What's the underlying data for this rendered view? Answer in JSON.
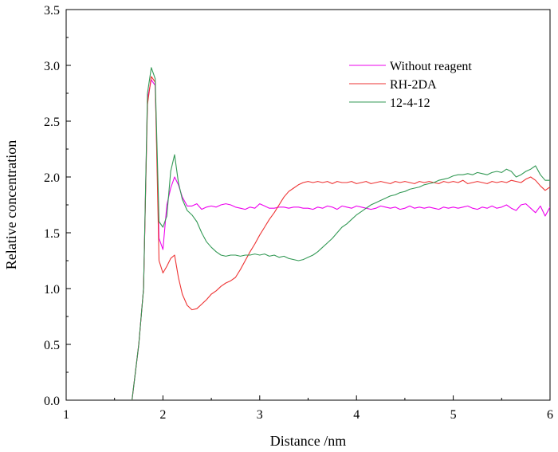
{
  "chart_data": {
    "type": "line",
    "title": "",
    "xlabel": "Distance /nm",
    "ylabel": "Relative concentration",
    "xlim": [
      1,
      6
    ],
    "ylim": [
      0,
      3.5
    ],
    "xticks": [
      "1",
      "2",
      "3",
      "4",
      "5",
      "6"
    ],
    "yticks": [
      "0.0",
      "0.5",
      "1.0",
      "1.5",
      "2.0",
      "2.5",
      "3.0",
      "3.5"
    ],
    "legend_position": "top-right",
    "series": [
      {
        "name": "Without reagent",
        "color": "#ee00ee",
        "points": [
          [
            1.68,
            0.0
          ],
          [
            1.75,
            0.5
          ],
          [
            1.8,
            1.0
          ],
          [
            1.84,
            2.7
          ],
          [
            1.88,
            2.87
          ],
          [
            1.92,
            2.82
          ],
          [
            1.96,
            1.45
          ],
          [
            2.0,
            1.35
          ],
          [
            2.04,
            1.75
          ],
          [
            2.08,
            1.9
          ],
          [
            2.12,
            2.0
          ],
          [
            2.16,
            1.93
          ],
          [
            2.2,
            1.82
          ],
          [
            2.25,
            1.74
          ],
          [
            2.3,
            1.74
          ],
          [
            2.35,
            1.76
          ],
          [
            2.4,
            1.71
          ],
          [
            2.45,
            1.73
          ],
          [
            2.5,
            1.74
          ],
          [
            2.55,
            1.73
          ],
          [
            2.6,
            1.75
          ],
          [
            2.65,
            1.76
          ],
          [
            2.7,
            1.75
          ],
          [
            2.75,
            1.73
          ],
          [
            2.8,
            1.72
          ],
          [
            2.85,
            1.71
          ],
          [
            2.9,
            1.73
          ],
          [
            2.95,
            1.72
          ],
          [
            3.0,
            1.76
          ],
          [
            3.05,
            1.74
          ],
          [
            3.1,
            1.72
          ],
          [
            3.15,
            1.72
          ],
          [
            3.2,
            1.73
          ],
          [
            3.25,
            1.73
          ],
          [
            3.3,
            1.72
          ],
          [
            3.35,
            1.73
          ],
          [
            3.4,
            1.73
          ],
          [
            3.45,
            1.72
          ],
          [
            3.5,
            1.72
          ],
          [
            3.55,
            1.71
          ],
          [
            3.6,
            1.73
          ],
          [
            3.65,
            1.72
          ],
          [
            3.7,
            1.74
          ],
          [
            3.75,
            1.73
          ],
          [
            3.8,
            1.71
          ],
          [
            3.85,
            1.74
          ],
          [
            3.9,
            1.73
          ],
          [
            3.95,
            1.72
          ],
          [
            4.0,
            1.74
          ],
          [
            4.05,
            1.73
          ],
          [
            4.1,
            1.72
          ],
          [
            4.15,
            1.71
          ],
          [
            4.2,
            1.72
          ],
          [
            4.25,
            1.74
          ],
          [
            4.3,
            1.73
          ],
          [
            4.35,
            1.72
          ],
          [
            4.4,
            1.73
          ],
          [
            4.45,
            1.71
          ],
          [
            4.5,
            1.72
          ],
          [
            4.55,
            1.74
          ],
          [
            4.6,
            1.72
          ],
          [
            4.65,
            1.73
          ],
          [
            4.7,
            1.72
          ],
          [
            4.75,
            1.73
          ],
          [
            4.8,
            1.72
          ],
          [
            4.85,
            1.71
          ],
          [
            4.9,
            1.73
          ],
          [
            4.95,
            1.72
          ],
          [
            5.0,
            1.73
          ],
          [
            5.05,
            1.72
          ],
          [
            5.1,
            1.73
          ],
          [
            5.15,
            1.74
          ],
          [
            5.2,
            1.72
          ],
          [
            5.25,
            1.71
          ],
          [
            5.3,
            1.73
          ],
          [
            5.35,
            1.72
          ],
          [
            5.4,
            1.74
          ],
          [
            5.45,
            1.72
          ],
          [
            5.5,
            1.73
          ],
          [
            5.55,
            1.75
          ],
          [
            5.6,
            1.72
          ],
          [
            5.65,
            1.7
          ],
          [
            5.7,
            1.75
          ],
          [
            5.75,
            1.76
          ],
          [
            5.8,
            1.72
          ],
          [
            5.85,
            1.68
          ],
          [
            5.9,
            1.74
          ],
          [
            5.95,
            1.65
          ],
          [
            6.0,
            1.73
          ]
        ]
      },
      {
        "name": "RH-2DA",
        "color": "#ee3333",
        "points": [
          [
            1.68,
            0.0
          ],
          [
            1.75,
            0.5
          ],
          [
            1.8,
            1.0
          ],
          [
            1.84,
            2.65
          ],
          [
            1.88,
            2.9
          ],
          [
            1.92,
            2.85
          ],
          [
            1.96,
            1.25
          ],
          [
            2.0,
            1.14
          ],
          [
            2.04,
            1.2
          ],
          [
            2.08,
            1.27
          ],
          [
            2.12,
            1.3
          ],
          [
            2.16,
            1.1
          ],
          [
            2.2,
            0.95
          ],
          [
            2.25,
            0.85
          ],
          [
            2.3,
            0.81
          ],
          [
            2.35,
            0.82
          ],
          [
            2.4,
            0.86
          ],
          [
            2.45,
            0.9
          ],
          [
            2.5,
            0.95
          ],
          [
            2.55,
            0.98
          ],
          [
            2.6,
            1.02
          ],
          [
            2.65,
            1.05
          ],
          [
            2.7,
            1.07
          ],
          [
            2.75,
            1.1
          ],
          [
            2.8,
            1.17
          ],
          [
            2.85,
            1.25
          ],
          [
            2.9,
            1.33
          ],
          [
            2.95,
            1.4
          ],
          [
            3.0,
            1.48
          ],
          [
            3.05,
            1.55
          ],
          [
            3.1,
            1.62
          ],
          [
            3.15,
            1.68
          ],
          [
            3.2,
            1.75
          ],
          [
            3.25,
            1.82
          ],
          [
            3.3,
            1.87
          ],
          [
            3.35,
            1.9
          ],
          [
            3.4,
            1.93
          ],
          [
            3.45,
            1.95
          ],
          [
            3.5,
            1.96
          ],
          [
            3.55,
            1.95
          ],
          [
            3.6,
            1.96
          ],
          [
            3.65,
            1.95
          ],
          [
            3.7,
            1.96
          ],
          [
            3.75,
            1.94
          ],
          [
            3.8,
            1.96
          ],
          [
            3.85,
            1.95
          ],
          [
            3.9,
            1.95
          ],
          [
            3.95,
            1.96
          ],
          [
            4.0,
            1.94
          ],
          [
            4.05,
            1.95
          ],
          [
            4.1,
            1.96
          ],
          [
            4.15,
            1.94
          ],
          [
            4.2,
            1.95
          ],
          [
            4.25,
            1.96
          ],
          [
            4.3,
            1.95
          ],
          [
            4.35,
            1.94
          ],
          [
            4.4,
            1.96
          ],
          [
            4.45,
            1.95
          ],
          [
            4.5,
            1.96
          ],
          [
            4.55,
            1.95
          ],
          [
            4.6,
            1.94
          ],
          [
            4.65,
            1.96
          ],
          [
            4.7,
            1.95
          ],
          [
            4.75,
            1.96
          ],
          [
            4.8,
            1.95
          ],
          [
            4.85,
            1.94
          ],
          [
            4.9,
            1.96
          ],
          [
            4.95,
            1.95
          ],
          [
            5.0,
            1.96
          ],
          [
            5.05,
            1.95
          ],
          [
            5.1,
            1.97
          ],
          [
            5.15,
            1.94
          ],
          [
            5.2,
            1.95
          ],
          [
            5.25,
            1.96
          ],
          [
            5.3,
            1.95
          ],
          [
            5.35,
            1.94
          ],
          [
            5.4,
            1.96
          ],
          [
            5.45,
            1.95
          ],
          [
            5.5,
            1.96
          ],
          [
            5.55,
            1.95
          ],
          [
            5.6,
            1.97
          ],
          [
            5.65,
            1.96
          ],
          [
            5.7,
            1.95
          ],
          [
            5.75,
            1.98
          ],
          [
            5.8,
            2.0
          ],
          [
            5.85,
            1.97
          ],
          [
            5.9,
            1.92
          ],
          [
            5.95,
            1.88
          ],
          [
            6.0,
            1.91
          ]
        ]
      },
      {
        "name": "12-4-12",
        "color": "#339955",
        "points": [
          [
            1.68,
            0.0
          ],
          [
            1.75,
            0.5
          ],
          [
            1.8,
            1.0
          ],
          [
            1.84,
            2.75
          ],
          [
            1.88,
            2.98
          ],
          [
            1.92,
            2.88
          ],
          [
            1.96,
            1.6
          ],
          [
            2.0,
            1.55
          ],
          [
            2.04,
            1.65
          ],
          [
            2.08,
            2.05
          ],
          [
            2.12,
            2.2
          ],
          [
            2.16,
            1.95
          ],
          [
            2.2,
            1.8
          ],
          [
            2.25,
            1.7
          ],
          [
            2.3,
            1.66
          ],
          [
            2.35,
            1.6
          ],
          [
            2.4,
            1.5
          ],
          [
            2.45,
            1.42
          ],
          [
            2.5,
            1.37
          ],
          [
            2.55,
            1.33
          ],
          [
            2.6,
            1.3
          ],
          [
            2.65,
            1.29
          ],
          [
            2.7,
            1.3
          ],
          [
            2.75,
            1.3
          ],
          [
            2.8,
            1.29
          ],
          [
            2.85,
            1.3
          ],
          [
            2.9,
            1.3
          ],
          [
            2.95,
            1.31
          ],
          [
            3.0,
            1.3
          ],
          [
            3.05,
            1.31
          ],
          [
            3.1,
            1.29
          ],
          [
            3.15,
            1.3
          ],
          [
            3.2,
            1.28
          ],
          [
            3.25,
            1.29
          ],
          [
            3.3,
            1.27
          ],
          [
            3.35,
            1.26
          ],
          [
            3.4,
            1.25
          ],
          [
            3.45,
            1.26
          ],
          [
            3.5,
            1.28
          ],
          [
            3.55,
            1.3
          ],
          [
            3.6,
            1.33
          ],
          [
            3.65,
            1.37
          ],
          [
            3.7,
            1.41
          ],
          [
            3.75,
            1.45
          ],
          [
            3.8,
            1.5
          ],
          [
            3.85,
            1.55
          ],
          [
            3.9,
            1.58
          ],
          [
            3.95,
            1.62
          ],
          [
            4.0,
            1.66
          ],
          [
            4.05,
            1.69
          ],
          [
            4.1,
            1.72
          ],
          [
            4.15,
            1.75
          ],
          [
            4.2,
            1.77
          ],
          [
            4.25,
            1.79
          ],
          [
            4.3,
            1.81
          ],
          [
            4.35,
            1.83
          ],
          [
            4.4,
            1.84
          ],
          [
            4.45,
            1.86
          ],
          [
            4.5,
            1.87
          ],
          [
            4.55,
            1.89
          ],
          [
            4.6,
            1.9
          ],
          [
            4.65,
            1.91
          ],
          [
            4.7,
            1.93
          ],
          [
            4.75,
            1.94
          ],
          [
            4.8,
            1.95
          ],
          [
            4.85,
            1.97
          ],
          [
            4.9,
            1.98
          ],
          [
            4.95,
            1.99
          ],
          [
            5.0,
            2.01
          ],
          [
            5.05,
            2.02
          ],
          [
            5.1,
            2.02
          ],
          [
            5.15,
            2.03
          ],
          [
            5.2,
            2.02
          ],
          [
            5.25,
            2.04
          ],
          [
            5.3,
            2.03
          ],
          [
            5.35,
            2.02
          ],
          [
            5.4,
            2.04
          ],
          [
            5.45,
            2.05
          ],
          [
            5.5,
            2.04
          ],
          [
            5.55,
            2.07
          ],
          [
            5.6,
            2.05
          ],
          [
            5.65,
            2.0
          ],
          [
            5.7,
            2.02
          ],
          [
            5.75,
            2.05
          ],
          [
            5.8,
            2.07
          ],
          [
            5.85,
            2.1
          ],
          [
            5.9,
            2.02
          ],
          [
            5.95,
            1.97
          ],
          [
            6.0,
            1.97
          ]
        ]
      }
    ]
  }
}
